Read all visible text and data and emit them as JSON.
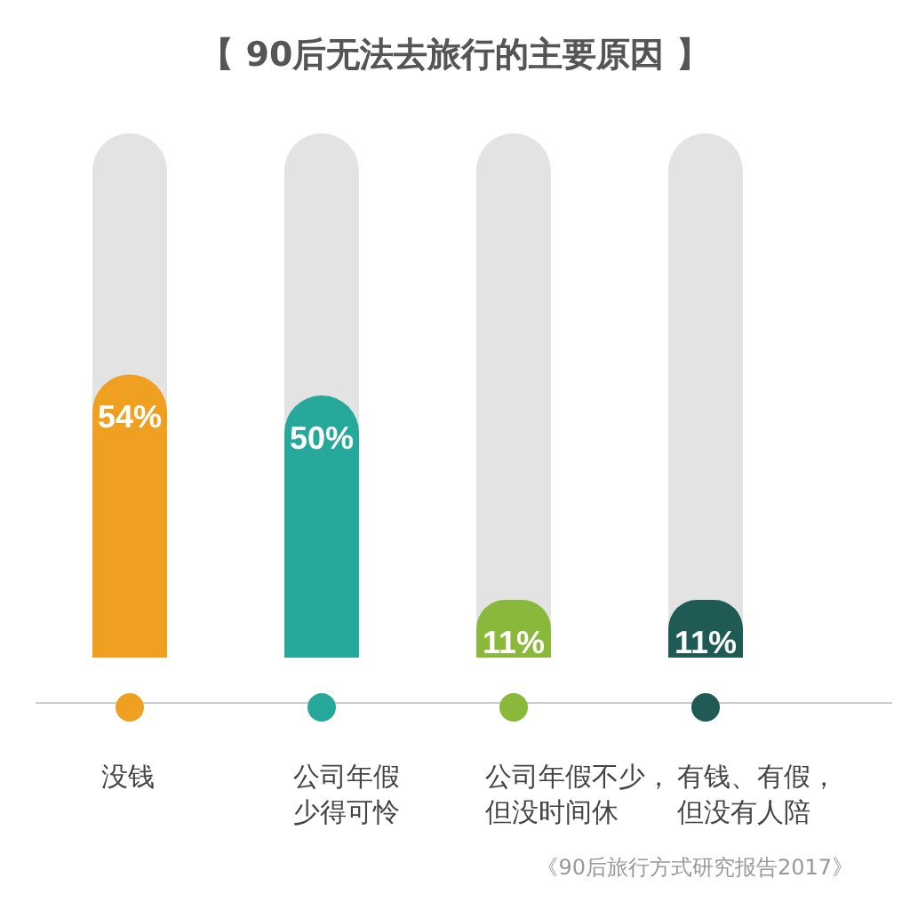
{
  "chart_data": {
    "type": "bar",
    "title": "【 90后无法去旅行的主要原因 】",
    "categories": [
      "没钱",
      "公司年假少得可怜",
      "公司年假不少，但没时间休",
      "有钱、有假，但没有人陪"
    ],
    "values": [
      54,
      50,
      11,
      11
    ],
    "colors": [
      "#f0a020",
      "#26a99a",
      "#8ab83a",
      "#1f5a55"
    ],
    "value_labels": [
      "54%",
      "50%",
      "11%",
      "11%"
    ],
    "ylim": [
      0,
      100
    ],
    "annotations": [
      "《90后旅行方式研究报告2017》"
    ]
  }
}
